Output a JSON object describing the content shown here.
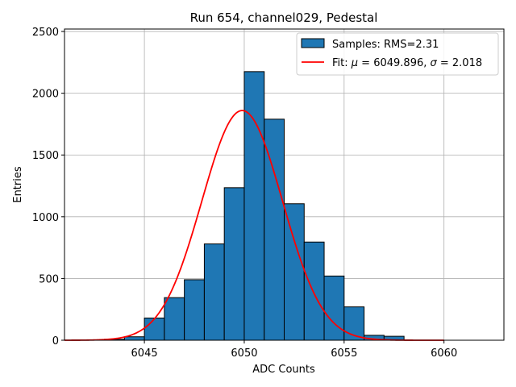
{
  "chart_data": {
    "type": "bar",
    "title": "Run 654, channel029, Pedestal",
    "xlabel": "ADC Counts",
    "ylabel": "Entries",
    "xlim": [
      6041,
      6063
    ],
    "ylim": [
      0,
      2520
    ],
    "xticks": [
      6045,
      6050,
      6055,
      6060
    ],
    "yticks": [
      0,
      500,
      1000,
      1500,
      2000,
      2500
    ],
    "grid": true,
    "legend_position": "top-right",
    "histogram": {
      "name": "Samples: RMS=2.31",
      "color": "#1f77b4",
      "bins": [
        {
          "x": 6042.0,
          "value": 2
        },
        {
          "x": 6043.0,
          "value": 8
        },
        {
          "x": 6044.0,
          "value": 28
        },
        {
          "x": 6045.0,
          "value": 180
        },
        {
          "x": 6046.0,
          "value": 345
        },
        {
          "x": 6047.0,
          "value": 490
        },
        {
          "x": 6048.0,
          "value": 780
        },
        {
          "x": 6049.0,
          "value": 1235
        },
        {
          "x": 6050.0,
          "value": 2175
        },
        {
          "x": 6051.0,
          "value": 1790
        },
        {
          "x": 6052.0,
          "value": 1105
        },
        {
          "x": 6053.0,
          "value": 795
        },
        {
          "x": 6054.0,
          "value": 520
        },
        {
          "x": 6055.0,
          "value": 270
        },
        {
          "x": 6056.0,
          "value": 40
        },
        {
          "x": 6057.0,
          "value": 32
        }
      ]
    },
    "fit": {
      "name": "Fit: μ = 6049.896, σ = 2.018",
      "label_prefix": "Fit: ",
      "mu_symbol": "μ",
      "mu_text": " = 6049.896, ",
      "sigma_symbol": "σ",
      "sigma_text": " = 2.018",
      "color": "#ff0000",
      "mu": 6049.896,
      "sigma": 2.018,
      "amplitude": 1860,
      "x_range": [
        6041,
        6060
      ]
    }
  }
}
